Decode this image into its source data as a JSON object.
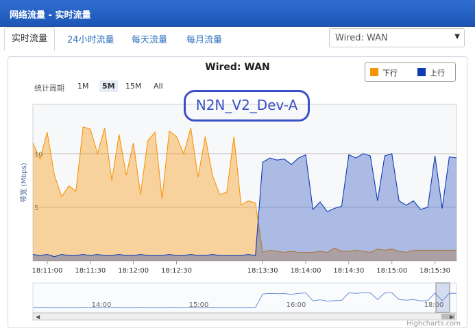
{
  "window": {
    "title": "网络流量 - 实时流量"
  },
  "tabs": [
    {
      "label": "实时流量",
      "active": true
    },
    {
      "label": "24小时流量",
      "active": false
    },
    {
      "label": "每天流量",
      "active": false
    },
    {
      "label": "每月流量",
      "active": false
    }
  ],
  "interface_select": {
    "value": "Wired: WAN"
  },
  "range_selector": {
    "label": "统计周期",
    "buttons": [
      "1M",
      "5M",
      "15M",
      "All"
    ],
    "selected": "5M"
  },
  "watermark_text": "N2N_V2_Dev-A",
  "colors": {
    "download": "#f89406",
    "upload": "#0d3bb6"
  },
  "credits": "Highcharts.com",
  "chart_data": {
    "type": "area",
    "title": "Wired: WAN",
    "ylabel": "带宽 (Mbps)",
    "ylim": [
      0,
      14.6
    ],
    "yticks": [
      5,
      10
    ],
    "xticks": [
      "18:11:00",
      "18:11:30",
      "18:12:00",
      "18:12:30",
      "18:13:30",
      "18:14:00",
      "18:14:30",
      "18:15:00",
      "18:15:30"
    ],
    "legend_position": "top-right",
    "series": [
      {
        "name": "下行",
        "color": "#f89406",
        "x": [
          "18:10:50",
          "18:10:55",
          "18:11:00",
          "18:11:05",
          "18:11:10",
          "18:11:15",
          "18:11:20",
          "18:11:25",
          "18:11:30",
          "18:11:35",
          "18:11:40",
          "18:11:45",
          "18:11:50",
          "18:11:55",
          "18:12:00",
          "18:12:05",
          "18:12:10",
          "18:12:15",
          "18:12:20",
          "18:12:25",
          "18:12:30",
          "18:12:35",
          "18:12:40",
          "18:12:45",
          "18:12:50",
          "18:12:55",
          "18:13:00",
          "18:13:05",
          "18:13:10",
          "18:13:15",
          "18:13:20",
          "18:13:25",
          "18:13:30",
          "18:13:35",
          "18:13:40",
          "18:13:45",
          "18:13:50",
          "18:13:55",
          "18:14:00",
          "18:14:05",
          "18:14:10",
          "18:14:15",
          "18:14:20",
          "18:14:25",
          "18:14:30",
          "18:14:35",
          "18:14:40",
          "18:14:45",
          "18:14:50",
          "18:14:55",
          "18:15:00",
          "18:15:05",
          "18:15:10",
          "18:15:15",
          "18:15:20",
          "18:15:25",
          "18:15:30",
          "18:15:35",
          "18:15:40",
          "18:15:45"
        ],
        "values": [
          11.0,
          9.5,
          12.0,
          8.0,
          6.0,
          7.0,
          6.5,
          12.5,
          12.3,
          10.0,
          12.4,
          7.5,
          11.8,
          8.0,
          11.0,
          6.2,
          11.2,
          12.0,
          5.8,
          12.1,
          11.6,
          10.0,
          12.4,
          7.8,
          11.6,
          8.0,
          6.2,
          6.4,
          11.6,
          5.2,
          5.6,
          5.4,
          0.8,
          1.0,
          0.9,
          0.8,
          0.9,
          0.8,
          0.8,
          0.8,
          0.9,
          0.8,
          1.2,
          0.9,
          0.9,
          1.0,
          0.9,
          0.8,
          1.1,
          1.0,
          1.1,
          0.9,
          0.8,
          1.0,
          1.0,
          1.0,
          1.0,
          1.0,
          1.0,
          1.0
        ]
      },
      {
        "name": "上行",
        "color": "#0d3bb6",
        "x": [
          "18:10:50",
          "18:10:55",
          "18:11:00",
          "18:11:05",
          "18:11:10",
          "18:11:15",
          "18:11:20",
          "18:11:25",
          "18:11:30",
          "18:11:35",
          "18:11:40",
          "18:11:45",
          "18:11:50",
          "18:11:55",
          "18:12:00",
          "18:12:05",
          "18:12:10",
          "18:12:15",
          "18:12:20",
          "18:12:25",
          "18:12:30",
          "18:12:35",
          "18:12:40",
          "18:12:45",
          "18:12:50",
          "18:12:55",
          "18:13:00",
          "18:13:05",
          "18:13:10",
          "18:13:15",
          "18:13:20",
          "18:13:25",
          "18:13:30",
          "18:13:35",
          "18:13:40",
          "18:13:45",
          "18:13:50",
          "18:13:55",
          "18:14:00",
          "18:14:05",
          "18:14:10",
          "18:14:15",
          "18:14:20",
          "18:14:25",
          "18:14:30",
          "18:14:35",
          "18:14:40",
          "18:14:45",
          "18:14:50",
          "18:14:55",
          "18:15:00",
          "18:15:05",
          "18:15:10",
          "18:15:15",
          "18:15:20",
          "18:15:25",
          "18:15:30",
          "18:15:35",
          "18:15:40",
          "18:15:45"
        ],
        "values": [
          0.6,
          0.5,
          0.6,
          0.4,
          0.6,
          0.5,
          0.5,
          0.6,
          0.5,
          0.6,
          0.5,
          0.5,
          0.6,
          0.5,
          0.5,
          0.6,
          0.5,
          0.5,
          0.5,
          0.6,
          0.5,
          0.5,
          0.6,
          0.5,
          0.5,
          0.6,
          0.5,
          0.5,
          0.5,
          0.5,
          0.6,
          0.5,
          9.2,
          9.6,
          9.4,
          9.5,
          9.0,
          9.6,
          9.9,
          4.8,
          5.5,
          4.6,
          4.9,
          5.1,
          9.9,
          9.6,
          10.0,
          9.8,
          5.6,
          9.8,
          10.0,
          5.6,
          5.2,
          5.6,
          4.8,
          5.0,
          9.8,
          4.9,
          9.7,
          9.6
        ]
      }
    ],
    "navigator_ticks": [
      "14:00",
      "15:00",
      "16:00",
      "18:00"
    ]
  }
}
